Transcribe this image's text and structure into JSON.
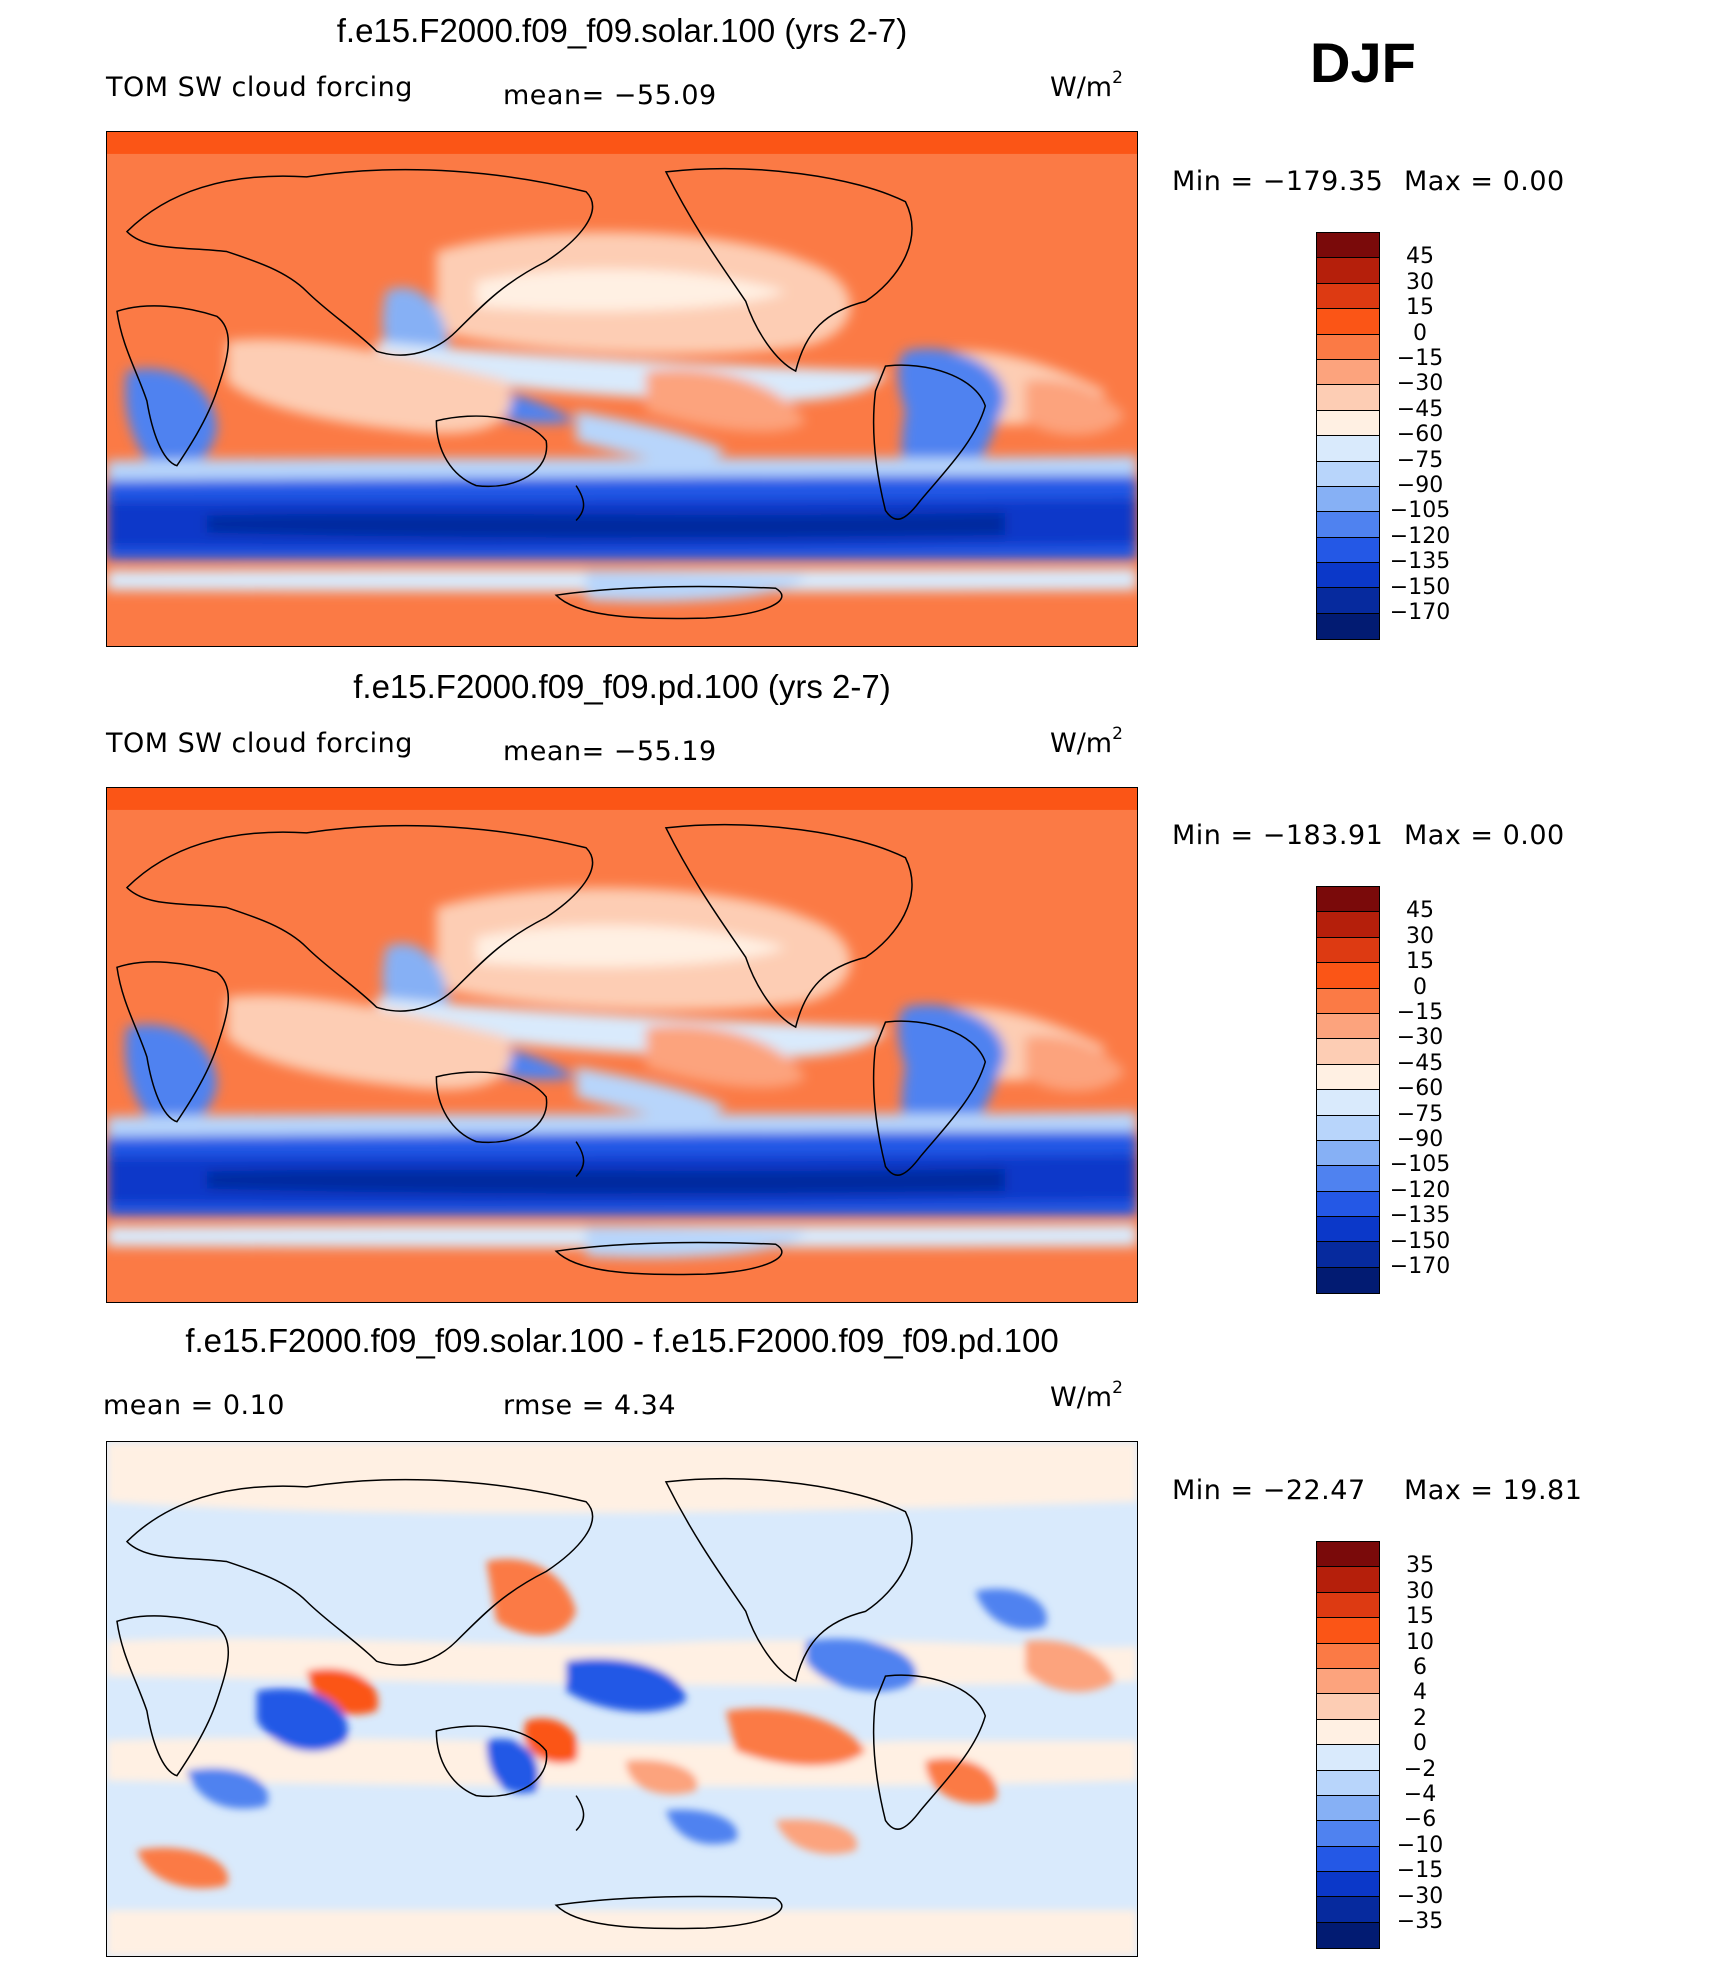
{
  "season": "DJF",
  "panels": [
    {
      "title": "f.e15.F2000.f09_f09.solar.100 (yrs 2-7)",
      "left_label": "TOM SW cloud forcing",
      "mean_text": "mean= −55.09",
      "units": "W/m",
      "units_exp": "2",
      "min_label": "Min  =  −179.35",
      "max_label": "Max  =     0.00",
      "colorbar": {
        "labels": [
          "45",
          "30",
          "15",
          "0",
          "−15",
          "−30",
          "−45",
          "−60",
          "−75",
          "−90",
          "−105",
          "−120",
          "−135",
          "−150",
          "−170"
        ],
        "colors": [
          "#7a0a0a",
          "#b51f0b",
          "#dd3a12",
          "#fb5516",
          "#fb7a45",
          "#fca37d",
          "#fdcdb4",
          "#fff0e3",
          "#d9eafc",
          "#b8d5fb",
          "#86b0f5",
          "#4f82f0",
          "#2458e6",
          "#0b38c9",
          "#062a9e",
          "#021b72"
        ]
      }
    },
    {
      "title": "f.e15.F2000.f09_f09.pd.100 (yrs 2-7)",
      "left_label": "TOM SW cloud forcing",
      "mean_text": "mean= −55.19",
      "units": "W/m",
      "units_exp": "2",
      "min_label": "Min  =  −183.91",
      "max_label": "Max  =     0.00",
      "colorbar": {
        "labels": [
          "45",
          "30",
          "15",
          "0",
          "−15",
          "−30",
          "−45",
          "−60",
          "−75",
          "−90",
          "−105",
          "−120",
          "−135",
          "−150",
          "−170"
        ],
        "colors": [
          "#7a0a0a",
          "#b51f0b",
          "#dd3a12",
          "#fb5516",
          "#fb7a45",
          "#fca37d",
          "#fdcdb4",
          "#fff0e3",
          "#d9eafc",
          "#b8d5fb",
          "#86b0f5",
          "#4f82f0",
          "#2458e6",
          "#0b38c9",
          "#062a9e",
          "#021b72"
        ]
      }
    },
    {
      "title": "f.e15.F2000.f09_f09.solar.100 - f.e15.F2000.f09_f09.pd.100",
      "left_label": "mean  =     0.10",
      "mean_text": "rmse  =     4.34",
      "units": "W/m",
      "units_exp": "2",
      "min_label": "Min  =  −22.47",
      "max_label": "Max  =    19.81",
      "colorbar": {
        "labels": [
          "35",
          "30",
          "15",
          "10",
          "6",
          "4",
          "2",
          "0",
          "−2",
          "−4",
          "−6",
          "−10",
          "−15",
          "−30",
          "−35"
        ],
        "colors": [
          "#7a0a0a",
          "#b51f0b",
          "#dd3a12",
          "#fb5516",
          "#fb7a45",
          "#fca37d",
          "#fdcdb4",
          "#fff0e3",
          "#d9eafc",
          "#b8d5fb",
          "#86b0f5",
          "#4f82f0",
          "#2458e6",
          "#0b38c9",
          "#062a9e",
          "#021b72"
        ]
      }
    }
  ]
}
